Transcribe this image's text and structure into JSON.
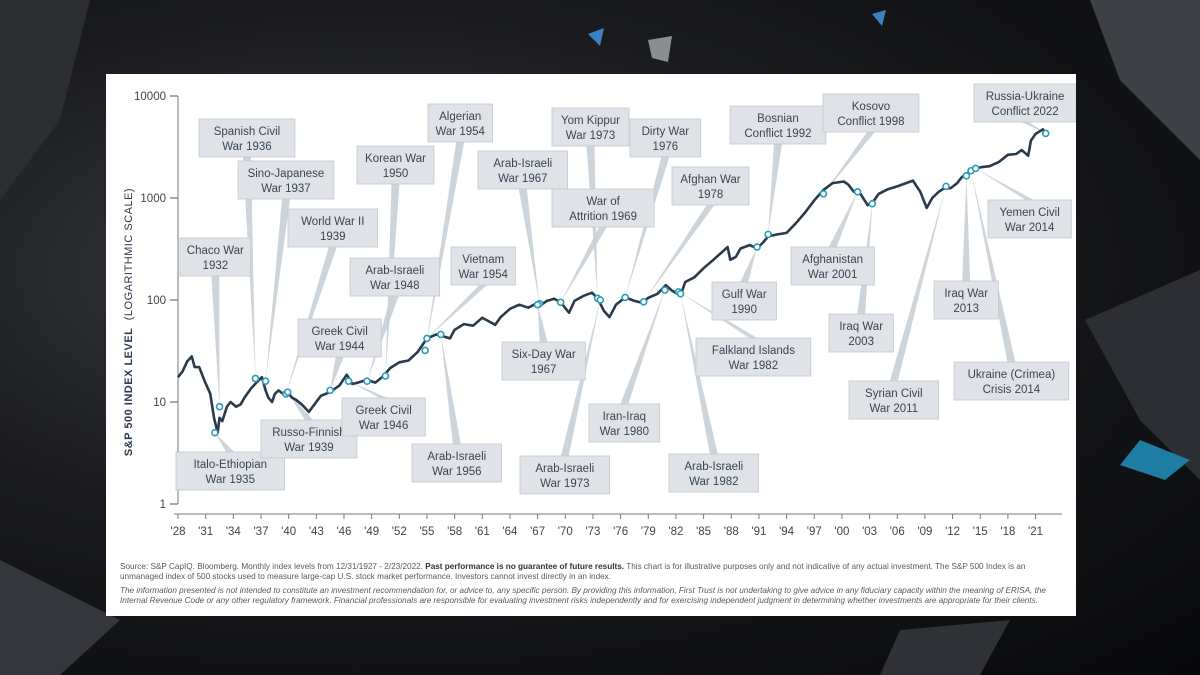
{
  "chart_data": {
    "type": "line",
    "scale": "log",
    "ylabel": "S&P 500 INDEX LEVEL",
    "ylabel_suffix": "(LOGARITHMIC SCALE)",
    "ylim": [
      1,
      10000
    ],
    "y_ticks": [
      "1",
      "10",
      "100",
      "1000",
      "10000"
    ],
    "xlim": [
      1928,
      2023
    ],
    "x_ticks": [
      "'28",
      "'31",
      "'34",
      "'37",
      "'40",
      "'43",
      "'46",
      "'49",
      "'52",
      "'55",
      "'58",
      "'61",
      "'64",
      "'67",
      "'70",
      "'73",
      "'76",
      "'79",
      "'82",
      "'85",
      "'88",
      "'91",
      "'94",
      "'97",
      "'00",
      "'03",
      "'06",
      "'09",
      "'12",
      "'15",
      "'18",
      "'21"
    ],
    "line_color": "#2b3a4a",
    "marker_color": "#2a9bb8",
    "series": [
      {
        "x": [
          1928,
          1928.5,
          1929,
          1929.5,
          1929.8,
          1930.3,
          1930.9,
          1931.5,
          1931.9,
          1932.3,
          1932.5,
          1932.8,
          1933.3,
          1933.7,
          1934.3,
          1934.8,
          1935.2,
          1935.9,
          1936.5,
          1937.1,
          1937.5,
          1937.8,
          1938.2,
          1938.5,
          1938.9,
          1939.4,
          1939.8,
          1940.4,
          1940.8,
          1941.4,
          1942.2,
          1942.8,
          1943.5,
          1944.5,
          1945.5,
          1946.3,
          1946.9,
          1947.5,
          1948.5,
          1949.4,
          1950.3,
          1951,
          1952,
          1953,
          1954,
          1955,
          1956,
          1957.5,
          1958,
          1959,
          1960,
          1961,
          1962.4,
          1963,
          1964,
          1965,
          1966,
          1966.8,
          1967.5,
          1968,
          1968.8,
          1969.5,
          1970.4,
          1971,
          1972,
          1972.9,
          1973.5,
          1974.2,
          1974.8,
          1975.5,
          1976.5,
          1977.5,
          1978.3,
          1979,
          1980,
          1980.9,
          1981.5,
          1982.5,
          1983,
          1984,
          1985,
          1986,
          1987.6,
          1987.9,
          1988.5,
          1989,
          1990,
          1990.8,
          1991.5,
          1992,
          1993,
          1994,
          1995,
          1996,
          1997,
          1998,
          1999,
          2000.2,
          2000.7,
          2001.3,
          2002,
          2002.8,
          2003.5,
          2004,
          2005,
          2006,
          2007.7,
          2008.5,
          2009.2,
          2009.8,
          2010.5,
          2011,
          2011.8,
          2012.5,
          2013,
          2014,
          2015,
          2016,
          2017,
          2018,
          2018.9,
          2019.5,
          2020.2,
          2020.5,
          2021,
          2021.8,
          2022.1
        ],
        "y": [
          17.5,
          20,
          25,
          28,
          22,
          22,
          16,
          12,
          7,
          5,
          7,
          6.5,
          9,
          10,
          9,
          9.5,
          11,
          13.5,
          15.5,
          17.5,
          13,
          11,
          10,
          12,
          13,
          12,
          12.5,
          11,
          10.5,
          9.5,
          8,
          9.5,
          11.5,
          12.5,
          14.5,
          18.5,
          15,
          15.5,
          16.5,
          15.5,
          18,
          21.5,
          24.5,
          25.5,
          31,
          42,
          46,
          42,
          51,
          58,
          56,
          67,
          57,
          68,
          82,
          90,
          84,
          92,
          91,
          98,
          103,
          95,
          75,
          98,
          110,
          118,
          104,
          78,
          68,
          90,
          106,
          98,
          94,
          105,
          115,
          140,
          125,
          110,
          150,
          167,
          205,
          245,
          330,
          248,
          265,
          320,
          345,
          320,
          370,
          420,
          440,
          455,
          565,
          720,
          950,
          1200,
          1400,
          1450,
          1350,
          1150,
          1100,
          850,
          950,
          1100,
          1220,
          1300,
          1480,
          1150,
          800,
          1000,
          1150,
          1230,
          1250,
          1400,
          1600,
          1850,
          2000,
          2050,
          2250,
          2650,
          2700,
          2950,
          2600,
          3650,
          4250,
          4700,
          4300
        ]
      }
    ],
    "annotations": [
      {
        "label": "Chaco War\n1932",
        "x": 1932.5,
        "y": 9
      },
      {
        "label": "Spanish Civil\nWar 1936",
        "x": 1936.4,
        "y": 17
      },
      {
        "label": "Sino-Japanese\nWar 1937",
        "x": 1937.5,
        "y": 16
      },
      {
        "label": "World War II\n1939",
        "x": 1939.7,
        "y": 12
      },
      {
        "label": "Italo-Ethiopian\nWar 1935",
        "x": 1932,
        "y": 5
      },
      {
        "label": "Russo-Finnish\nWar 1939",
        "x": 1939.9,
        "y": 12.5
      },
      {
        "label": "Greek Civil\nWar 1944",
        "x": 1944.5,
        "y": 13
      },
      {
        "label": "Korean War\n1950",
        "x": 1950.5,
        "y": 18
      },
      {
        "label": "Arab-Israeli\nWar 1948",
        "x": 1948.5,
        "y": 16
      },
      {
        "label": "Greek Civil\nWar 1946",
        "x": 1946.5,
        "y": 16
      },
      {
        "label": "Algerian\nWar 1954",
        "x": 1954.8,
        "y": 32
      },
      {
        "label": "Vietnam\nWar 1954",
        "x": 1955,
        "y": 42
      },
      {
        "label": "Arab-Israeli\nWar 1956",
        "x": 1956.5,
        "y": 46
      },
      {
        "label": "Arab-Israeli\nWar 1967",
        "x": 1967.2,
        "y": 92
      },
      {
        "label": "Six-Day War\n1967",
        "x": 1967,
        "y": 90
      },
      {
        "label": "Yom Kippur\nWar 1973",
        "x": 1973.5,
        "y": 104
      },
      {
        "label": "War of\nAttrition 1969",
        "x": 1969.5,
        "y": 95
      },
      {
        "label": "Arab-Israeli\nWar 1973",
        "x": 1973.8,
        "y": 100
      },
      {
        "label": "Dirty War\n1976",
        "x": 1976.5,
        "y": 106
      },
      {
        "label": "Afghan War\n1978",
        "x": 1978.5,
        "y": 96
      },
      {
        "label": "Iran-Iraq\nWar 1980",
        "x": 1980.8,
        "y": 125
      },
      {
        "label": "Falkland Islands\nWar 1982",
        "x": 1982.3,
        "y": 120
      },
      {
        "label": "Arab-Israeli\nWar 1982",
        "x": 1982.5,
        "y": 115
      },
      {
        "label": "Bosnian\nConflict 1992",
        "x": 1992,
        "y": 440
      },
      {
        "label": "Gulf War\n1990",
        "x": 1990.8,
        "y": 330
      },
      {
        "label": "Kosovo\nConflict 1998",
        "x": 1998,
        "y": 1100
      },
      {
        "label": "Afghanistan\nWar 2001",
        "x": 2001.7,
        "y": 1150
      },
      {
        "label": "Iraq War\n2003",
        "x": 2003.3,
        "y": 880
      },
      {
        "label": "Syrian Civil\nWar 2011",
        "x": 2011.3,
        "y": 1300
      },
      {
        "label": "Iraq War\n2013",
        "x": 2013.5,
        "y": 1650
      },
      {
        "label": "Ukraine (Crimea)\nCrisis 2014",
        "x": 2014,
        "y": 1850
      },
      {
        "label": "Yemen Civil\nWar 2014",
        "x": 2014.5,
        "y": 1950
      },
      {
        "label": "Russia-Ukraine\nConflict 2022",
        "x": 2022.1,
        "y": 4300
      }
    ]
  },
  "footer": {
    "source_plain": "Source: S&P CapIQ. Bloomberg. Monthly index levels from 12/31/1927 - 2/23/2022. ",
    "source_bold": "Past performance is no guarantee of future results.",
    "source_rest": " This chart is for illustrative purposes only and not indicative of any actual investment. The S&P 500 Index is an unmanaged index of 500 stocks used to measure large-cap U.S. stock market performance. Investors cannot invest directly in an index.",
    "disclaimer": "The information presented is not intended to constitute an investment recommendation for, or advice to, any specific person. By providing this information, First Trust is not undertaking to give advice in any fiduciary capacity within the meaning of ERISA, the Internal Revenue Code or any other regulatory framework. Financial professionals are responsible for evaluating investment risks independently and for exercising independent judgment in determining whether investments are appropriate for their clients."
  }
}
